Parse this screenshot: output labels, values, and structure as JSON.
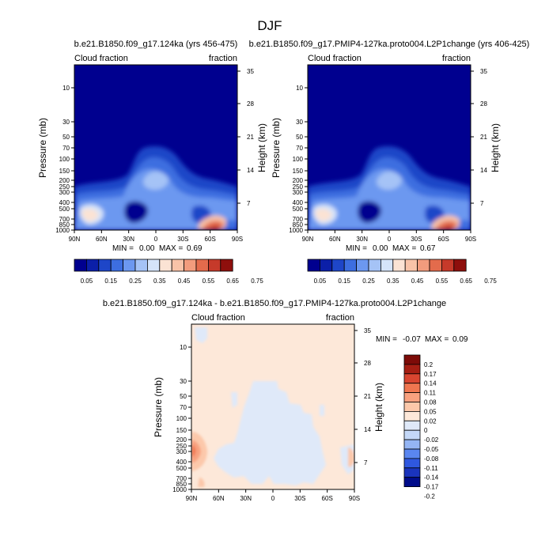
{
  "figure": {
    "title": "DJF"
  },
  "colors": {
    "cloud_scale": [
      "#00008f",
      "#0b1fa8",
      "#1e46c8",
      "#3d6ee0",
      "#6c98f0",
      "#a5c3f6",
      "#d5e4fa",
      "#fbe3d4",
      "#f8c3a8",
      "#f29c7d",
      "#e36b4c",
      "#c63a2a",
      "#8e0f0c"
    ],
    "diff_scale": [
      "#000c8a",
      "#1a34bd",
      "#2f58e0",
      "#5a86f0",
      "#94b5f4",
      "#c4d8f8",
      "#dfe9f9",
      "#fde8d9",
      "#fcc8aa",
      "#f8a17f",
      "#ef7650",
      "#d84530",
      "#a51e13",
      "#7d0b08"
    ]
  },
  "chart_data": [
    {
      "type": "heatmap",
      "title": "b.e21.B1850.f09_g17.124ka (yrs 456-475)",
      "left_label": "Cloud fraction",
      "right_label": "fraction",
      "ylabel": "Pressure (mb)",
      "ylabel_right": "Height (km)",
      "x_ticks": [
        "90N",
        "60N",
        "30N",
        "0",
        "30S",
        "60S",
        "90S"
      ],
      "y_ticks": [
        "10",
        "30",
        "50",
        "70",
        "100",
        "150",
        "200",
        "250",
        "300",
        "400",
        "500",
        "700",
        "850",
        "1000"
      ],
      "y_ticks_right": [
        "35",
        "28",
        "21",
        "14",
        "7"
      ],
      "stats": {
        "min_label": "MIN =",
        "min": "0.00",
        "max_label": "MAX =",
        "max": "0.69"
      },
      "colorbar_labels": [
        "0.05",
        "0.15",
        "0.25",
        "0.35",
        "0.45",
        "0.55",
        "0.65",
        "0.75"
      ]
    },
    {
      "type": "heatmap",
      "title": "b.e21.B1850.f09_g17.PMIP4-127ka.proto004.L2P1change (yrs 406-425)",
      "left_label": "Cloud fraction",
      "right_label": "fraction",
      "ylabel": "Pressure (mb)",
      "ylabel_right": "Height (km)",
      "x_ticks": [
        "90N",
        "60N",
        "30N",
        "0",
        "30S",
        "60S",
        "90S"
      ],
      "y_ticks": [
        "10",
        "30",
        "50",
        "70",
        "100",
        "150",
        "200",
        "250",
        "300",
        "400",
        "500",
        "700",
        "850",
        "1000"
      ],
      "y_ticks_right": [
        "35",
        "28",
        "21",
        "14",
        "7"
      ],
      "stats": {
        "min_label": "MIN =",
        "min": "0.00",
        "max_label": "MAX =",
        "max": "0.67"
      },
      "colorbar_labels": [
        "0.05",
        "0.15",
        "0.25",
        "0.35",
        "0.45",
        "0.55",
        "0.65",
        "0.75"
      ]
    },
    {
      "type": "heatmap",
      "title": "b.e21.B1850.f09_g17.124ka - b.e21.B1850.f09_g17.PMIP4-127ka.proto004.L2P1change",
      "left_label": "Cloud fraction",
      "right_label": "fraction",
      "ylabel": "Pressure (mb)",
      "ylabel_right": "Height (km)",
      "x_ticks": [
        "90N",
        "60N",
        "30N",
        "0",
        "30S",
        "60S",
        "90S"
      ],
      "y_ticks": [
        "10",
        "30",
        "50",
        "70",
        "100",
        "150",
        "200",
        "250",
        "300",
        "400",
        "500",
        "700",
        "850",
        "1000"
      ],
      "y_ticks_right": [
        "35",
        "28",
        "21",
        "14",
        "7"
      ],
      "stats": {
        "min_label": "MIN =",
        "min": "-0.07",
        "max_label": "MAX =",
        "max": "0.09"
      },
      "colorbar_labels": [
        "0.2",
        "0.17",
        "0.14",
        "0.11",
        "0.08",
        "0.05",
        "0.02",
        "0",
        "-0.02",
        "-0.05",
        "-0.08",
        "-0.11",
        "-0.14",
        "-0.17",
        "-0.2"
      ]
    }
  ]
}
